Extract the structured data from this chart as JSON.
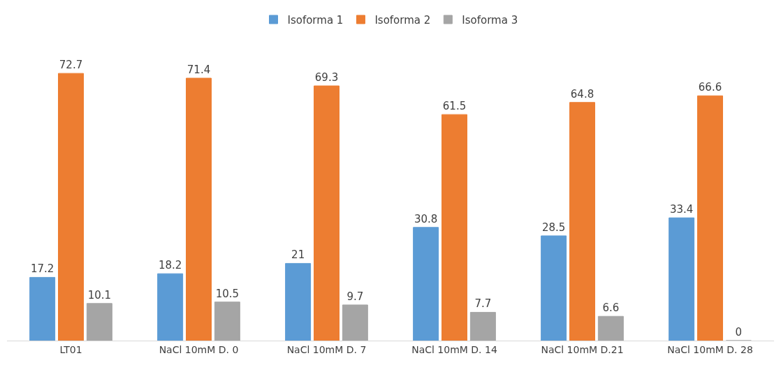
{
  "chart_data": {
    "type": "bar",
    "categories": [
      "LT01",
      "NaCl 10mM D. 0",
      "NaCl 10mM D. 7",
      "NaCl 10mM D. 14",
      "NaCl 10mM D.21",
      "NaCl 10mM D. 28"
    ],
    "series": [
      {
        "name": "Isoforma 1",
        "color": "#5b9bd5",
        "values": [
          17.2,
          18.2,
          21,
          30.8,
          28.5,
          33.4
        ]
      },
      {
        "name": "Isoforma 2",
        "color": "#ed7d31",
        "values": [
          72.7,
          71.4,
          69.3,
          61.5,
          64.8,
          66.6
        ]
      },
      {
        "name": "Isoforma 3",
        "color": "#a5a5a5",
        "values": [
          10.1,
          10.5,
          9.7,
          7.7,
          6.6,
          0
        ]
      }
    ],
    "data_labels": true,
    "legend": "top"
  }
}
